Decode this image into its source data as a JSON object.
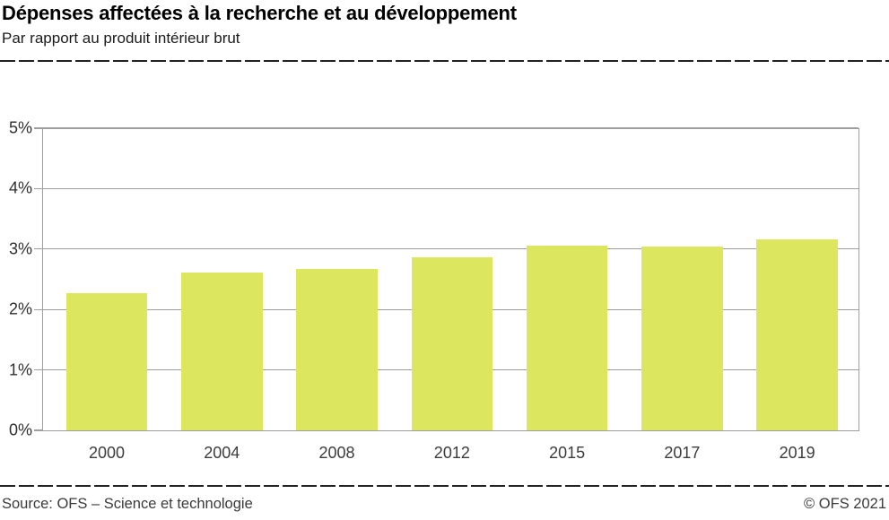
{
  "header": {
    "title": "Dépenses affectées à la recherche et au développement",
    "subtitle": "Par rapport au produit intérieur brut"
  },
  "footer": {
    "source": "Source: OFS – Science et technologie",
    "copyright": "© OFS 2021"
  },
  "colors": {
    "bar": "#dde65f",
    "grid": "#9e9e9e",
    "rule": "#222222",
    "axis_text": "#3c3c3c"
  },
  "chart_data": {
    "type": "bar",
    "title": "Dépenses affectées à la recherche et au développement",
    "subtitle": "Par rapport au produit intérieur brut",
    "categories": [
      "2000",
      "2004",
      "2008",
      "2012",
      "2015",
      "2017",
      "2019"
    ],
    "values": [
      2.27,
      2.6,
      2.66,
      2.86,
      3.05,
      3.04,
      3.15
    ],
    "unit": "%",
    "xlabel": "",
    "ylabel": "",
    "ylim": [
      0,
      5
    ],
    "ytick_step": 1,
    "ytick_labels": [
      "0%",
      "1%",
      "2%",
      "3%",
      "4%",
      "5%"
    ],
    "grid": true,
    "legend": "none",
    "bar_color": "#dde65f"
  }
}
